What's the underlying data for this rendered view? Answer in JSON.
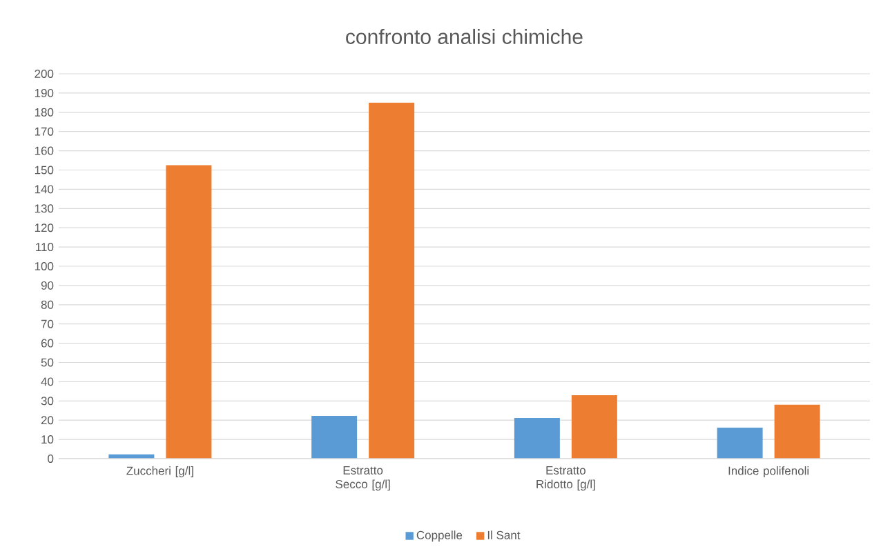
{
  "chart_data": {
    "type": "bar",
    "title": "confronto analisi chimiche",
    "categories": [
      "Zuccheri [g/l]",
      "Estratto Secco [g/l]",
      "Estratto Ridotto [g/l]",
      "Indice polifenoli"
    ],
    "series": [
      {
        "name": "Coppelle",
        "color": "#5b9bd5",
        "values": [
          2.2,
          22.2,
          21.1,
          16.1
        ]
      },
      {
        "name": "Il Sant",
        "color": "#ed7d31",
        "values": [
          152.5,
          185,
          33,
          28
        ]
      }
    ],
    "ylim": [
      0,
      200
    ],
    "yticks": [
      0,
      10,
      20,
      30,
      40,
      50,
      60,
      70,
      80,
      90,
      100,
      110,
      120,
      130,
      140,
      150,
      160,
      170,
      180,
      190,
      200
    ],
    "grid": "y",
    "legend": "bottom"
  }
}
